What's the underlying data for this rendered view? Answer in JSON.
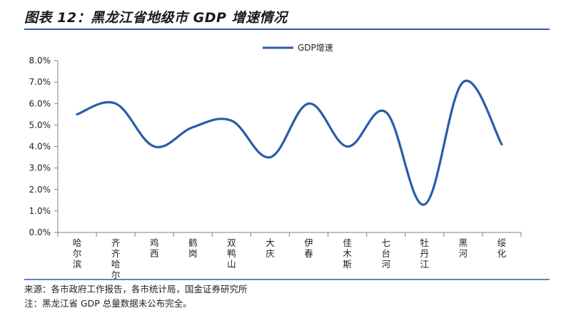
{
  "figure": {
    "title": "图表 12：黑龙江省地级市 GDP 增速情况",
    "source_note": "来源：各市政府工作报告，各市统计局，国金证券研究所",
    "footnote": "注：黑龙江省 GDP 总量数据未公布完全。"
  },
  "colors": {
    "series": "#2a5ca8",
    "title_rule": "#2a5ca8",
    "axis": "#7f7f7f",
    "text": "#222222"
  },
  "chart_data": {
    "type": "line",
    "smooth": true,
    "title": "",
    "xlabel": "",
    "ylabel": "",
    "categories": [
      "哈尔滨",
      "齐齐哈尔",
      "鸡西",
      "鹤岗",
      "双鸭山",
      "大庆",
      "伊春",
      "佳木斯",
      "七台河",
      "牡丹江",
      "黑河",
      "绥化"
    ],
    "series": [
      {
        "name": "GDP增速",
        "values": [
          5.5,
          6.0,
          4.0,
          4.9,
          5.2,
          3.5,
          6.0,
          4.0,
          5.6,
          1.3,
          7.0,
          4.1
        ]
      }
    ],
    "ylim": [
      0,
      8
    ],
    "yticks": [
      "0.0%",
      "1.0%",
      "2.0%",
      "3.0%",
      "4.0%",
      "5.0%",
      "6.0%",
      "7.0%",
      "8.0%"
    ],
    "grid": false,
    "legend_position": "top-center"
  }
}
